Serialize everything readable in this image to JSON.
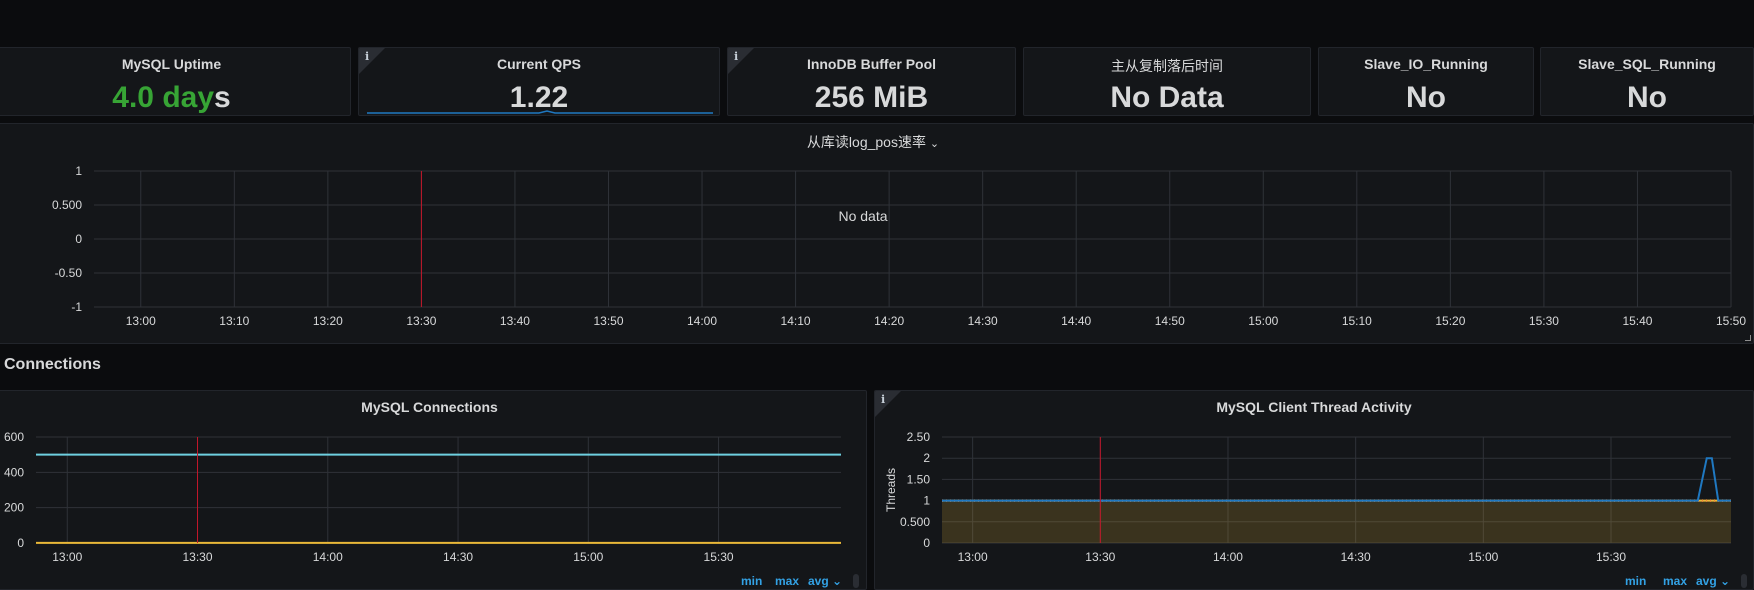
{
  "stats": [
    {
      "title": "MySQL Uptime",
      "value_num": "4.0 day",
      "value_suffix": "s",
      "has_info": false
    },
    {
      "title": "Current QPS",
      "value": "1.22",
      "has_info": true
    },
    {
      "title": "InnoDB Buffer Pool",
      "value": "256 MiB",
      "has_info": true
    },
    {
      "title": "主从复制落后时间",
      "value": "No Data",
      "has_info": false
    },
    {
      "title": "Slave_IO_Running",
      "value": "No",
      "has_info": false
    },
    {
      "title": "Slave_SQL_Running",
      "value": "No",
      "has_info": false
    }
  ],
  "colors": {
    "uptime_green": "#37a435",
    "accent_blue": "#33a2e5",
    "series_cyan": "#6ed0e0",
    "series_yellow": "#eab839",
    "series_orange": "#ef843c",
    "series_blue": "#1f78c1",
    "annotation_red": "#c4162a"
  },
  "slave_panel": {
    "title": "从库读log_pos速率",
    "title_chevron": "⌄",
    "no_data": "No data"
  },
  "row": {
    "title": "Connections"
  },
  "conn_panel": {
    "title": "MySQL Connections"
  },
  "thread_panel": {
    "title": "MySQL Client Thread Activity",
    "ylabel": "Threads"
  },
  "legend_links": {
    "min": "min",
    "max": "max",
    "avg": "avg",
    "chevron": "⌄"
  },
  "chart_data": [
    {
      "type": "line",
      "title": "从库读log_pos速率",
      "x": [
        "13:00",
        "13:10",
        "13:20",
        "13:30",
        "13:40",
        "13:50",
        "14:00",
        "14:10",
        "14:20",
        "14:30",
        "14:40",
        "14:50",
        "15:00",
        "15:10",
        "15:20",
        "15:30",
        "15:40",
        "15:50"
      ],
      "y_ticks": [
        "1",
        "0.500",
        "0",
        "-0.50",
        "-1"
      ],
      "ylim": [
        -1,
        1
      ],
      "series": [],
      "annotation_x": "13:30",
      "grid": true
    },
    {
      "type": "line",
      "title": "MySQL Connections",
      "x": [
        "13:00",
        "13:30",
        "14:00",
        "14:30",
        "15:00",
        "15:30"
      ],
      "x_range_hours": [
        12.88,
        15.97
      ],
      "y_ticks": [
        "600",
        "400",
        "200",
        "0"
      ],
      "ylim": [
        0,
        600
      ],
      "series": [
        {
          "color": "#6ed0e0",
          "points": [
            [
              12.88,
              500
            ],
            [
              15.97,
              500
            ]
          ]
        },
        {
          "color": "#eab839",
          "points": [
            [
              12.88,
              1
            ],
            [
              15.97,
              1
            ]
          ]
        }
      ],
      "annotation_x": "13:30",
      "grid": true
    },
    {
      "type": "area",
      "title": "MySQL Client Thread Activity",
      "ylabel": "Threads",
      "x": [
        "13:00",
        "13:30",
        "14:00",
        "14:30",
        "15:00",
        "15:30"
      ],
      "x_range_hours": [
        12.88,
        15.97
      ],
      "y_ticks": [
        "2.50",
        "2",
        "1.50",
        "1",
        "0.500",
        "0"
      ],
      "ylim": [
        0,
        2.5
      ],
      "series": [
        {
          "color": "#eab839",
          "fill": true,
          "points": [
            [
              12.88,
              1
            ],
            [
              15.97,
              1
            ]
          ]
        },
        {
          "color": "#ef843c",
          "dotted": true,
          "points": [
            [
              12.88,
              1
            ],
            [
              15.97,
              1
            ]
          ]
        },
        {
          "color": "#1f78c1",
          "points": [
            [
              12.88,
              1
            ],
            [
              15.84,
              1
            ],
            [
              15.875,
              2
            ],
            [
              15.895,
              2
            ],
            [
              15.92,
              1
            ],
            [
              15.97,
              1
            ]
          ]
        }
      ],
      "annotation_x": "13:30",
      "grid": true
    }
  ]
}
